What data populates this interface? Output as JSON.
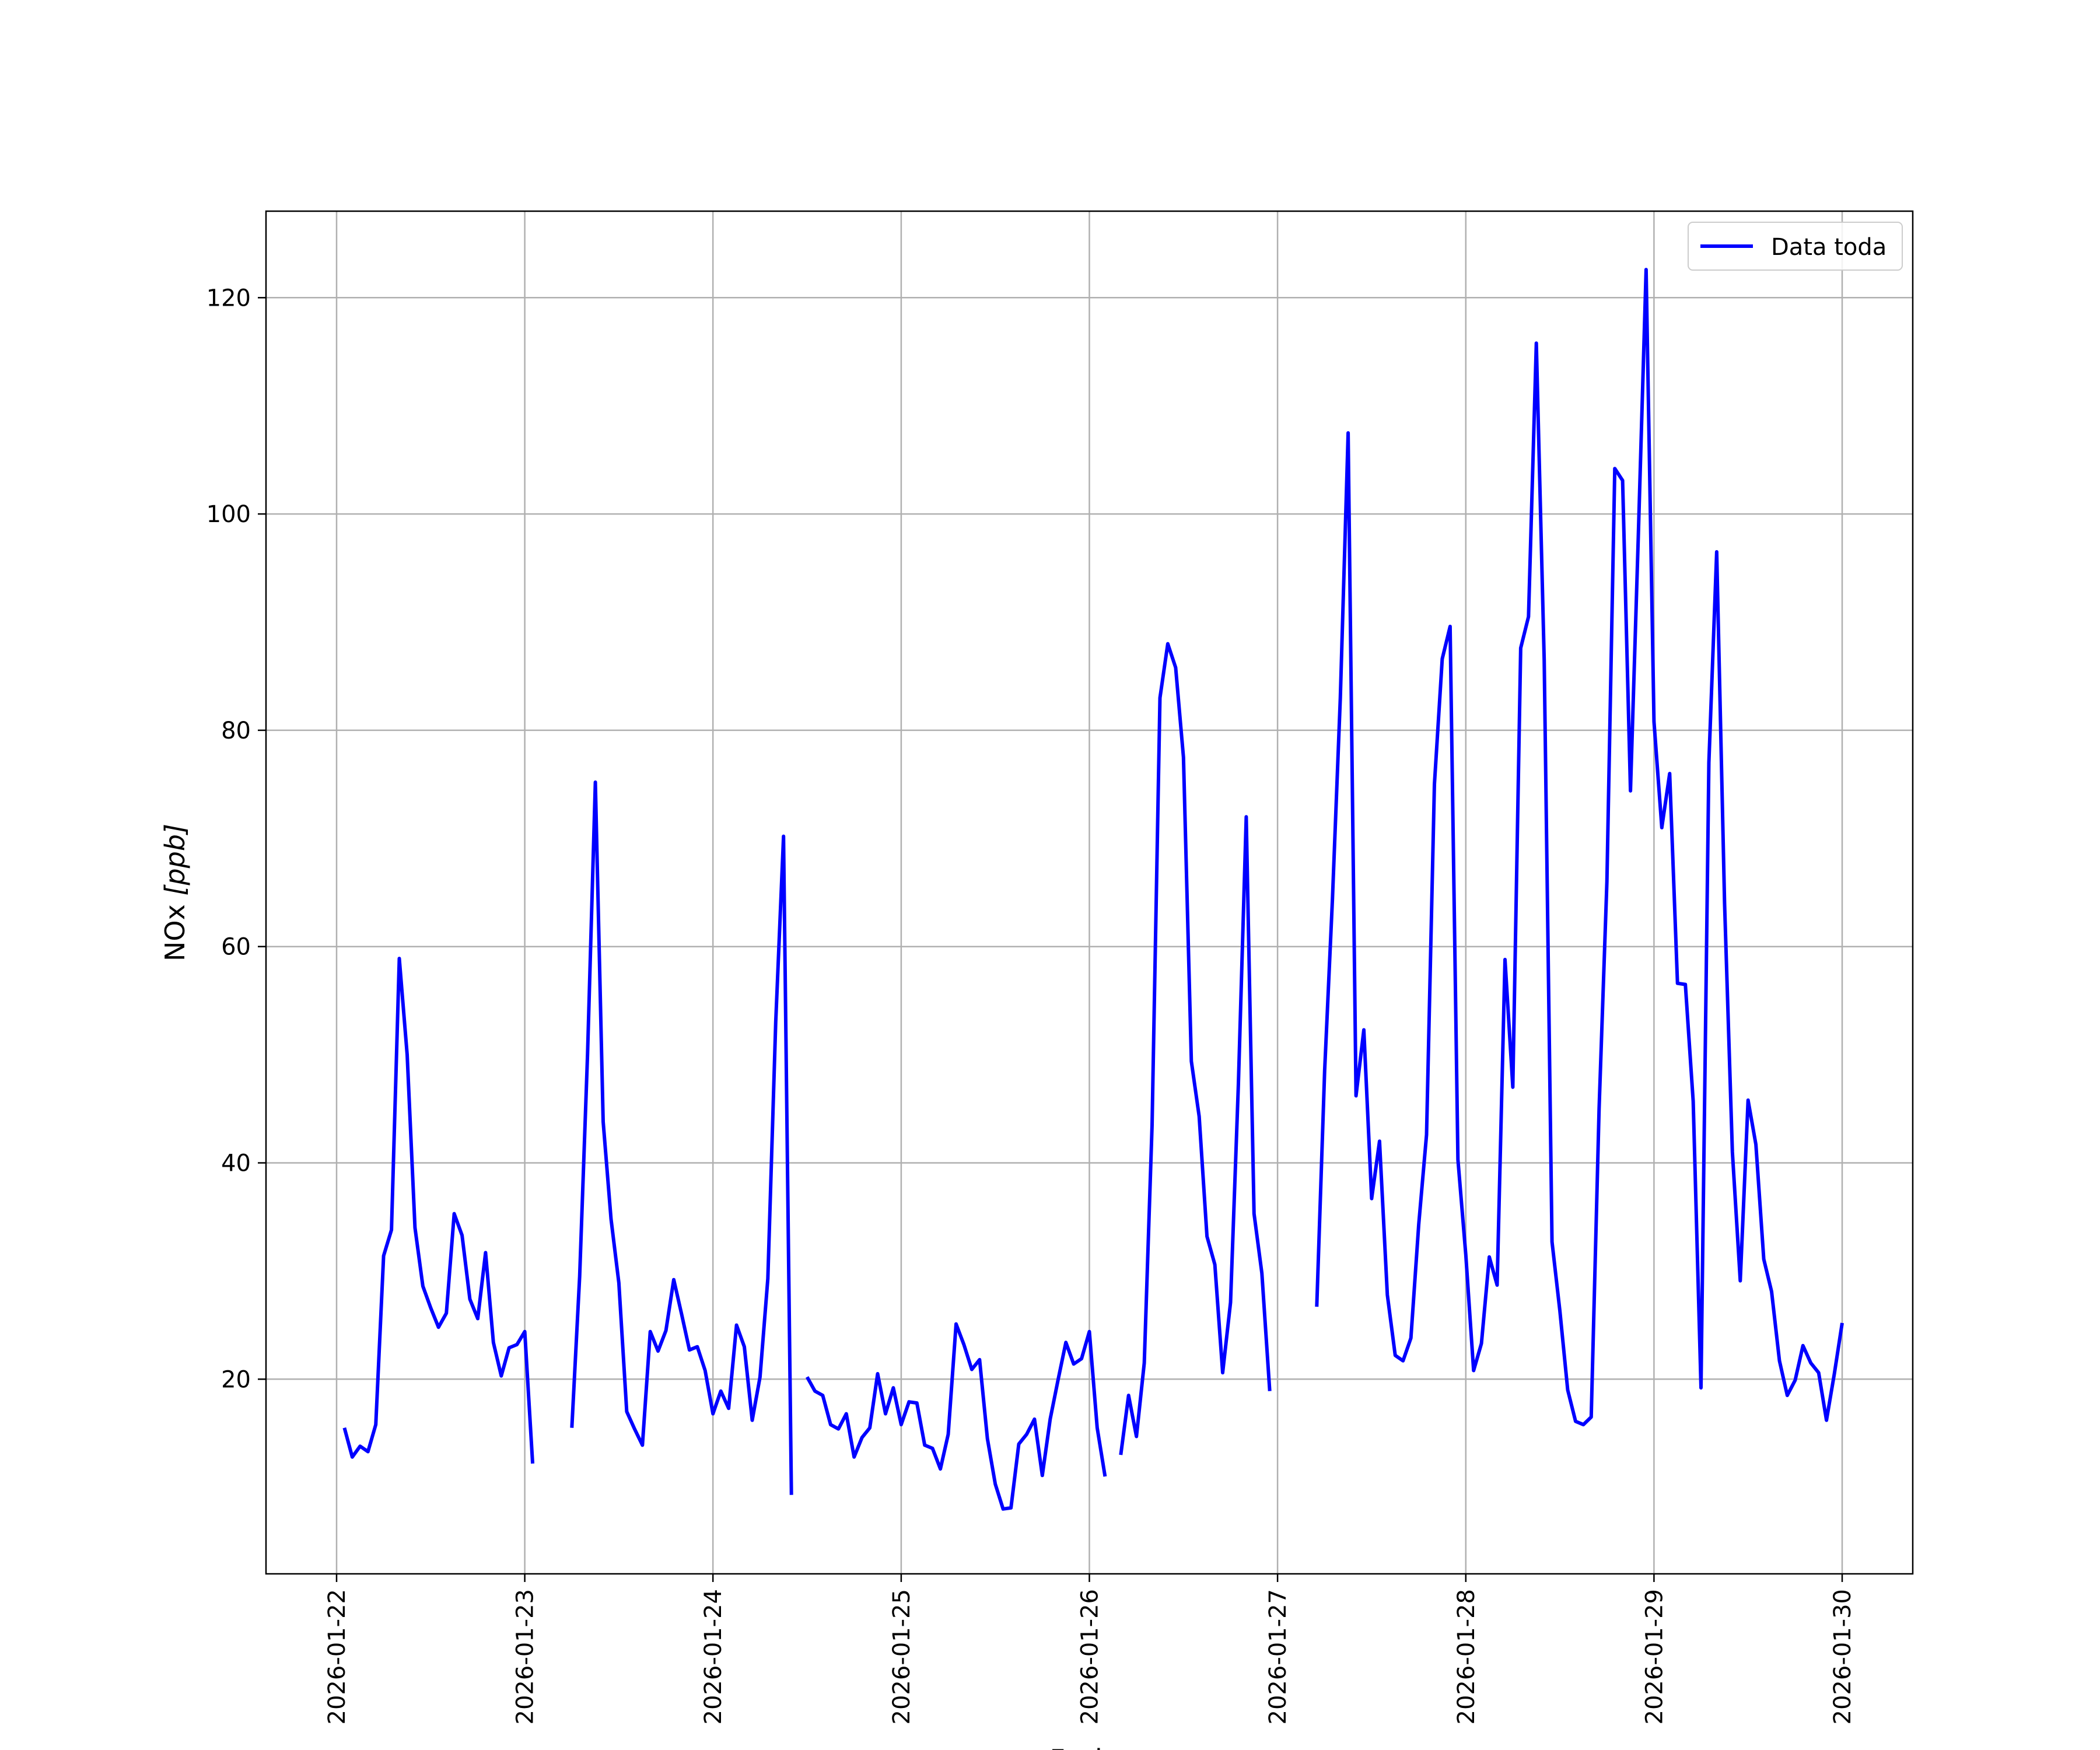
{
  "chart_data": {
    "type": "line",
    "xlabel": "Fecha",
    "ylabel_main": "NOx ",
    "ylabel_unit": "[ppb]",
    "x_axis_type": "date",
    "xlim": [
      "2026-01-21T15:00",
      "2026-01-30T09:00"
    ],
    "ylim": [
      2,
      128
    ],
    "x_ticks": [
      "2026-01-22",
      "2026-01-23",
      "2026-01-24",
      "2026-01-25",
      "2026-01-26",
      "2026-01-27",
      "2026-01-28",
      "2026-01-29",
      "2026-01-30"
    ],
    "y_ticks": [
      20,
      40,
      60,
      80,
      100,
      120
    ],
    "grid": true,
    "legend_position": "top-right",
    "series": [
      {
        "name": "Data toda",
        "color": "#0000ff",
        "segments": [
          [
            [
              "2026-01-22T01:00",
              15.5
            ],
            [
              "2026-01-22T02:00",
              12.8
            ],
            [
              "2026-01-22T03:00",
              13.8
            ],
            [
              "2026-01-22T04:00",
              13.3
            ],
            [
              "2026-01-22T05:00",
              15.8
            ],
            [
              "2026-01-22T06:00",
              31.4
            ],
            [
              "2026-01-22T07:00",
              33.8
            ],
            [
              "2026-01-22T08:00",
              58.9
            ],
            [
              "2026-01-22T09:00",
              50.0
            ],
            [
              "2026-01-22T10:00",
              34.0
            ],
            [
              "2026-01-22T11:00",
              28.6
            ],
            [
              "2026-01-22T12:00",
              26.6
            ],
            [
              "2026-01-22T13:00",
              24.8
            ],
            [
              "2026-01-22T14:00",
              26.1
            ],
            [
              "2026-01-22T15:00",
              35.3
            ],
            [
              "2026-01-22T16:00",
              33.3
            ],
            [
              "2026-01-22T17:00",
              27.4
            ],
            [
              "2026-01-22T18:00",
              25.6
            ],
            [
              "2026-01-22T19:00",
              31.7
            ],
            [
              "2026-01-22T20:00",
              23.4
            ],
            [
              "2026-01-22T21:00",
              20.3
            ],
            [
              "2026-01-22T22:00",
              22.9
            ],
            [
              "2026-01-22T23:00",
              23.2
            ],
            [
              "2026-01-23T00:00",
              24.4
            ],
            [
              "2026-01-23T01:00",
              12.2
            ]
          ],
          [
            [
              "2026-01-23T06:00",
              15.5
            ],
            [
              "2026-01-23T07:00",
              29.5
            ],
            [
              "2026-01-23T08:00",
              50.0
            ],
            [
              "2026-01-23T09:00",
              75.2
            ],
            [
              "2026-01-23T10:00",
              43.8
            ],
            [
              "2026-01-23T11:00",
              34.8
            ],
            [
              "2026-01-23T12:00",
              28.9
            ],
            [
              "2026-01-23T13:00",
              17.0
            ],
            [
              "2026-01-23T14:00",
              15.4
            ],
            [
              "2026-01-23T15:00",
              13.9
            ],
            [
              "2026-01-23T16:00",
              24.4
            ],
            [
              "2026-01-23T17:00",
              22.6
            ],
            [
              "2026-01-23T18:00",
              24.5
            ],
            [
              "2026-01-23T19:00",
              29.2
            ],
            [
              "2026-01-23T20:00",
              26.0
            ],
            [
              "2026-01-23T21:00",
              22.7
            ],
            [
              "2026-01-23T22:00",
              23.0
            ],
            [
              "2026-01-23T23:00",
              20.8
            ],
            [
              "2026-01-24T00:00",
              16.8
            ],
            [
              "2026-01-24T01:00",
              18.9
            ],
            [
              "2026-01-24T02:00",
              17.3
            ],
            [
              "2026-01-24T03:00",
              25.0
            ],
            [
              "2026-01-24T04:00",
              23.0
            ],
            [
              "2026-01-24T05:00",
              16.2
            ],
            [
              "2026-01-24T06:00",
              20.2
            ],
            [
              "2026-01-24T07:00",
              29.3
            ],
            [
              "2026-01-24T08:00",
              53.0
            ],
            [
              "2026-01-24T09:00",
              70.2
            ],
            [
              "2026-01-24T10:00",
              9.3
            ]
          ],
          [
            [
              "2026-01-24T12:00",
              20.2
            ],
            [
              "2026-01-24T13:00",
              18.9
            ],
            [
              "2026-01-24T14:00",
              18.5
            ],
            [
              "2026-01-24T15:00",
              15.8
            ],
            [
              "2026-01-24T16:00",
              15.4
            ],
            [
              "2026-01-24T17:00",
              16.8
            ],
            [
              "2026-01-24T18:00",
              12.8
            ],
            [
              "2026-01-24T19:00",
              14.6
            ],
            [
              "2026-01-24T20:00",
              15.5
            ],
            [
              "2026-01-24T21:00",
              20.5
            ],
            [
              "2026-01-24T22:00",
              16.8
            ],
            [
              "2026-01-24T23:00",
              19.2
            ],
            [
              "2026-01-25T00:00",
              15.8
            ],
            [
              "2026-01-25T01:00",
              17.9
            ],
            [
              "2026-01-25T02:00",
              17.8
            ],
            [
              "2026-01-25T03:00",
              13.9
            ],
            [
              "2026-01-25T04:00",
              13.6
            ],
            [
              "2026-01-25T05:00",
              11.7
            ],
            [
              "2026-01-25T06:00",
              14.9
            ],
            [
              "2026-01-25T07:00",
              25.1
            ],
            [
              "2026-01-25T08:00",
              23.2
            ],
            [
              "2026-01-25T09:00",
              20.9
            ],
            [
              "2026-01-25T10:00",
              21.8
            ],
            [
              "2026-01-25T11:00",
              14.5
            ],
            [
              "2026-01-25T12:00",
              10.3
            ],
            [
              "2026-01-25T13:00",
              8.0
            ],
            [
              "2026-01-25T14:00",
              8.1
            ],
            [
              "2026-01-25T15:00",
              14.0
            ],
            [
              "2026-01-25T16:00",
              14.9
            ],
            [
              "2026-01-25T17:00",
              16.3
            ],
            [
              "2026-01-25T18:00",
              11.1
            ],
            [
              "2026-01-25T19:00",
              16.3
            ],
            [
              "2026-01-25T20:00",
              19.9
            ],
            [
              "2026-01-25T21:00",
              23.4
            ],
            [
              "2026-01-25T22:00",
              21.4
            ],
            [
              "2026-01-25T23:00",
              21.9
            ],
            [
              "2026-01-26T00:00",
              24.4
            ],
            [
              "2026-01-26T01:00",
              15.5
            ],
            [
              "2026-01-26T02:00",
              11.0
            ]
          ],
          [
            [
              "2026-01-26T04:00",
              13.0
            ],
            [
              "2026-01-26T05:00",
              18.5
            ],
            [
              "2026-01-26T06:00",
              14.7
            ],
            [
              "2026-01-26T07:00",
              21.5
            ],
            [
              "2026-01-26T08:00",
              43.5
            ],
            [
              "2026-01-26T09:00",
              83.0
            ],
            [
              "2026-01-26T10:00",
              88.0
            ],
            [
              "2026-01-26T11:00",
              85.8
            ],
            [
              "2026-01-26T12:00",
              77.5
            ],
            [
              "2026-01-26T13:00",
              49.4
            ],
            [
              "2026-01-26T14:00",
              44.3
            ],
            [
              "2026-01-26T15:00",
              33.2
            ],
            [
              "2026-01-26T16:00",
              30.6
            ],
            [
              "2026-01-26T17:00",
              20.6
            ],
            [
              "2026-01-26T18:00",
              27.1
            ],
            [
              "2026-01-26T19:00",
              47.2
            ],
            [
              "2026-01-26T20:00",
              72.0
            ],
            [
              "2026-01-26T21:00",
              35.3
            ],
            [
              "2026-01-26T22:00",
              29.8
            ],
            [
              "2026-01-26T23:00",
              18.9
            ]
          ],
          [
            [
              "2026-01-27T05:00",
              26.7
            ],
            [
              "2026-01-27T06:00",
              48.5
            ],
            [
              "2026-01-27T07:00",
              64.4
            ],
            [
              "2026-01-27T08:00",
              83.0
            ],
            [
              "2026-01-27T09:00",
              107.5
            ],
            [
              "2026-01-27T10:00",
              46.2
            ],
            [
              "2026-01-27T11:00",
              52.3
            ],
            [
              "2026-01-27T12:00",
              36.7
            ],
            [
              "2026-01-27T13:00",
              42.0
            ],
            [
              "2026-01-27T14:00",
              27.8
            ],
            [
              "2026-01-27T15:00",
              22.2
            ],
            [
              "2026-01-27T16:00",
              21.7
            ],
            [
              "2026-01-27T17:00",
              23.8
            ],
            [
              "2026-01-27T18:00",
              34.3
            ],
            [
              "2026-01-27T19:00",
              42.6
            ],
            [
              "2026-01-27T20:00",
              75.0
            ],
            [
              "2026-01-27T21:00",
              86.6
            ],
            [
              "2026-01-27T22:00",
              89.6
            ],
            [
              "2026-01-27T23:00",
              40.3
            ],
            [
              "2026-01-28T00:00",
              31.5
            ],
            [
              "2026-01-28T01:00",
              20.8
            ],
            [
              "2026-01-28T02:00",
              23.3
            ],
            [
              "2026-01-28T03:00",
              31.3
            ],
            [
              "2026-01-28T04:00",
              28.7
            ],
            [
              "2026-01-28T05:00",
              58.8
            ],
            [
              "2026-01-28T06:00",
              47.0
            ],
            [
              "2026-01-28T07:00",
              87.6
            ],
            [
              "2026-01-28T08:00",
              90.5
            ],
            [
              "2026-01-28T09:00",
              115.8
            ],
            [
              "2026-01-28T10:00",
              86.5
            ],
            [
              "2026-01-28T11:00",
              32.7
            ],
            [
              "2026-01-28T12:00",
              26.3
            ],
            [
              "2026-01-28T13:00",
              19.0
            ],
            [
              "2026-01-28T14:00",
              16.1
            ],
            [
              "2026-01-28T15:00",
              15.8
            ],
            [
              "2026-01-28T16:00",
              16.5
            ],
            [
              "2026-01-28T17:00",
              45.0
            ],
            [
              "2026-01-28T18:00",
              66.0
            ],
            [
              "2026-01-28T19:00",
              104.2
            ],
            [
              "2026-01-28T20:00",
              103.1
            ],
            [
              "2026-01-28T21:00",
              74.4
            ],
            [
              "2026-01-28T22:00",
              97.9
            ],
            [
              "2026-01-28T23:00",
              122.6
            ],
            [
              "2026-01-29T00:00",
              80.8
            ],
            [
              "2026-01-29T01:00",
              71.0
            ],
            [
              "2026-01-29T02:00",
              76.0
            ],
            [
              "2026-01-29T03:00",
              56.6
            ],
            [
              "2026-01-29T04:00",
              56.5
            ],
            [
              "2026-01-29T05:00",
              45.7
            ],
            [
              "2026-01-29T06:00",
              19.2
            ],
            [
              "2026-01-29T07:00",
              77.0
            ],
            [
              "2026-01-29T08:00",
              96.5
            ],
            [
              "2026-01-29T09:00",
              64.0
            ],
            [
              "2026-01-29T10:00",
              41.0
            ],
            [
              "2026-01-29T11:00",
              29.1
            ],
            [
              "2026-01-29T12:00",
              45.8
            ],
            [
              "2026-01-29T13:00",
              41.7
            ],
            [
              "2026-01-29T14:00",
              31.1
            ],
            [
              "2026-01-29T15:00",
              28.1
            ],
            [
              "2026-01-29T16:00",
              21.7
            ],
            [
              "2026-01-29T17:00",
              18.5
            ],
            [
              "2026-01-29T18:00",
              19.9
            ],
            [
              "2026-01-29T19:00",
              23.1
            ],
            [
              "2026-01-29T20:00",
              21.5
            ],
            [
              "2026-01-29T21:00",
              20.6
            ],
            [
              "2026-01-29T22:00",
              16.2
            ],
            [
              "2026-01-29T23:00",
              20.5
            ],
            [
              "2026-01-30T00:00",
              25.2
            ]
          ]
        ]
      }
    ]
  }
}
